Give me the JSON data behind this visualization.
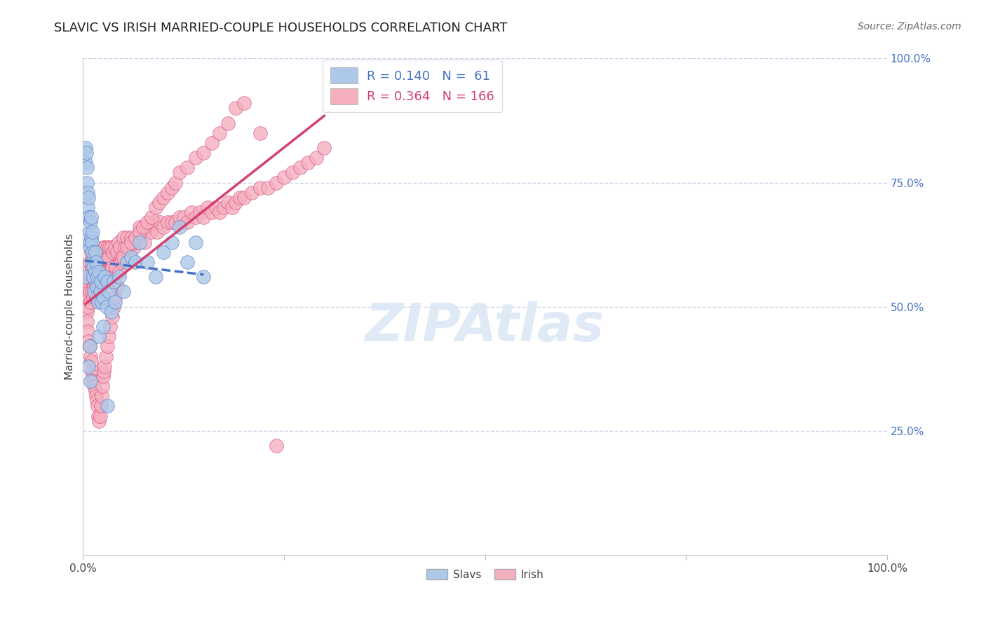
{
  "title": "SLAVIC VS IRISH MARRIED-COUPLE HOUSEHOLDS CORRELATION CHART",
  "source": "Source: ZipAtlas.com",
  "ylabel": "Married-couple Households",
  "ylabel_right_labels": [
    "100.0%",
    "75.0%",
    "50.0%",
    "25.0%"
  ],
  "ylabel_right_positions": [
    1.0,
    0.75,
    0.5,
    0.25
  ],
  "slavic_R": 0.14,
  "slavic_N": 61,
  "irish_R": 0.364,
  "irish_N": 166,
  "slavic_color": "#adc8e8",
  "slavic_line_color": "#4472c4",
  "irish_color": "#f5b0c0",
  "irish_line_color": "#d44070",
  "background_color": "#ffffff",
  "grid_color": "#c8d4e8",
  "watermark_color": "#dce8f5",
  "slavs_scatter_x": [
    0.002,
    0.003,
    0.003,
    0.004,
    0.005,
    0.005,
    0.006,
    0.006,
    0.007,
    0.007,
    0.008,
    0.008,
    0.009,
    0.009,
    0.01,
    0.01,
    0.011,
    0.011,
    0.012,
    0.012,
    0.013,
    0.013,
    0.014,
    0.015,
    0.015,
    0.016,
    0.017,
    0.018,
    0.019,
    0.02,
    0.021,
    0.022,
    0.023,
    0.025,
    0.027,
    0.029,
    0.03,
    0.032,
    0.035,
    0.038,
    0.04,
    0.045,
    0.05,
    0.055,
    0.06,
    0.065,
    0.07,
    0.08,
    0.09,
    0.1,
    0.11,
    0.12,
    0.13,
    0.14,
    0.15,
    0.007,
    0.008,
    0.009,
    0.02,
    0.025,
    0.03
  ],
  "slavs_scatter_y": [
    0.56,
    0.82,
    0.79,
    0.81,
    0.78,
    0.75,
    0.73,
    0.7,
    0.72,
    0.68,
    0.65,
    0.63,
    0.67,
    0.62,
    0.68,
    0.64,
    0.63,
    0.59,
    0.65,
    0.61,
    0.56,
    0.58,
    0.53,
    0.61,
    0.57,
    0.59,
    0.54,
    0.56,
    0.51,
    0.57,
    0.53,
    0.55,
    0.51,
    0.52,
    0.56,
    0.5,
    0.55,
    0.53,
    0.49,
    0.55,
    0.51,
    0.56,
    0.53,
    0.59,
    0.6,
    0.59,
    0.63,
    0.59,
    0.56,
    0.61,
    0.63,
    0.66,
    0.59,
    0.63,
    0.56,
    0.38,
    0.42,
    0.35,
    0.44,
    0.46,
    0.3
  ],
  "irish_scatter_x": [
    0.003,
    0.004,
    0.005,
    0.005,
    0.006,
    0.006,
    0.007,
    0.007,
    0.008,
    0.008,
    0.009,
    0.009,
    0.01,
    0.01,
    0.011,
    0.011,
    0.012,
    0.012,
    0.013,
    0.013,
    0.014,
    0.014,
    0.015,
    0.015,
    0.016,
    0.016,
    0.017,
    0.017,
    0.018,
    0.018,
    0.019,
    0.019,
    0.02,
    0.02,
    0.021,
    0.021,
    0.022,
    0.022,
    0.023,
    0.023,
    0.024,
    0.025,
    0.025,
    0.026,
    0.027,
    0.028,
    0.029,
    0.03,
    0.031,
    0.032,
    0.033,
    0.034,
    0.035,
    0.036,
    0.037,
    0.038,
    0.04,
    0.041,
    0.042,
    0.044,
    0.046,
    0.048,
    0.05,
    0.052,
    0.055,
    0.058,
    0.06,
    0.063,
    0.066,
    0.07,
    0.073,
    0.076,
    0.08,
    0.084,
    0.088,
    0.092,
    0.096,
    0.1,
    0.105,
    0.11,
    0.115,
    0.12,
    0.125,
    0.13,
    0.135,
    0.14,
    0.145,
    0.15,
    0.155,
    0.16,
    0.165,
    0.17,
    0.175,
    0.18,
    0.185,
    0.19,
    0.195,
    0.2,
    0.21,
    0.22,
    0.23,
    0.24,
    0.25,
    0.26,
    0.27,
    0.28,
    0.29,
    0.3,
    0.005,
    0.006,
    0.007,
    0.008,
    0.009,
    0.01,
    0.011,
    0.012,
    0.013,
    0.014,
    0.015,
    0.016,
    0.017,
    0.018,
    0.019,
    0.02,
    0.021,
    0.022,
    0.023,
    0.024,
    0.025,
    0.026,
    0.027,
    0.028,
    0.03,
    0.032,
    0.034,
    0.036,
    0.038,
    0.04,
    0.042,
    0.045,
    0.048,
    0.05,
    0.055,
    0.06,
    0.065,
    0.07,
    0.075,
    0.08,
    0.085,
    0.09,
    0.095,
    0.1,
    0.105,
    0.11,
    0.115,
    0.12,
    0.13,
    0.14,
    0.15,
    0.16,
    0.17,
    0.18,
    0.19,
    0.2,
    0.22,
    0.24
  ],
  "irish_scatter_y": [
    0.54,
    0.56,
    0.52,
    0.49,
    0.55,
    0.5,
    0.57,
    0.52,
    0.59,
    0.53,
    0.56,
    0.51,
    0.61,
    0.56,
    0.58,
    0.53,
    0.6,
    0.55,
    0.57,
    0.52,
    0.59,
    0.54,
    0.6,
    0.55,
    0.58,
    0.52,
    0.6,
    0.55,
    0.58,
    0.52,
    0.6,
    0.55,
    0.61,
    0.56,
    0.58,
    0.53,
    0.6,
    0.55,
    0.58,
    0.52,
    0.6,
    0.62,
    0.57,
    0.6,
    0.62,
    0.57,
    0.6,
    0.62,
    0.57,
    0.6,
    0.62,
    0.57,
    0.62,
    0.58,
    0.61,
    0.56,
    0.62,
    0.58,
    0.61,
    0.63,
    0.62,
    0.6,
    0.64,
    0.62,
    0.64,
    0.62,
    0.64,
    0.62,
    0.63,
    0.66,
    0.65,
    0.63,
    0.66,
    0.65,
    0.67,
    0.65,
    0.67,
    0.66,
    0.67,
    0.67,
    0.67,
    0.68,
    0.68,
    0.67,
    0.69,
    0.68,
    0.69,
    0.68,
    0.7,
    0.69,
    0.7,
    0.69,
    0.7,
    0.71,
    0.7,
    0.71,
    0.72,
    0.72,
    0.73,
    0.74,
    0.74,
    0.75,
    0.76,
    0.77,
    0.78,
    0.79,
    0.8,
    0.82,
    0.47,
    0.45,
    0.43,
    0.42,
    0.4,
    0.39,
    0.37,
    0.36,
    0.35,
    0.34,
    0.33,
    0.32,
    0.31,
    0.3,
    0.28,
    0.27,
    0.28,
    0.3,
    0.32,
    0.34,
    0.36,
    0.37,
    0.38,
    0.4,
    0.42,
    0.44,
    0.46,
    0.48,
    0.5,
    0.52,
    0.54,
    0.57,
    0.59,
    0.6,
    0.62,
    0.63,
    0.64,
    0.65,
    0.66,
    0.67,
    0.68,
    0.7,
    0.71,
    0.72,
    0.73,
    0.74,
    0.75,
    0.77,
    0.78,
    0.8,
    0.81,
    0.83,
    0.85,
    0.87,
    0.9,
    0.91,
    0.85,
    0.22
  ]
}
